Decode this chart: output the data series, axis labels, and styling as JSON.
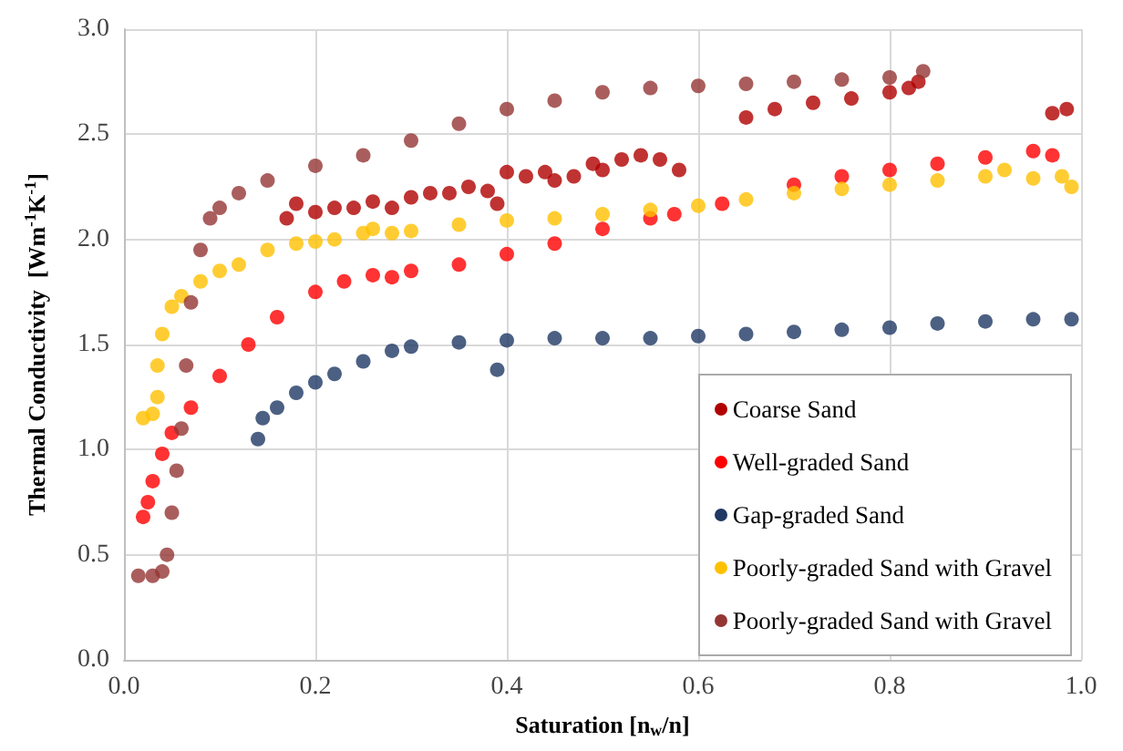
{
  "chart_data": {
    "type": "scatter",
    "xlabel": "Saturation [n$_{w}$/n]",
    "ylabel": "Thermal Conductivity  [Wm$^{-1}$K$^{-1}$]",
    "xlim": [
      0,
      1
    ],
    "xticks": [
      {
        "value": 0,
        "label": "0.0"
      },
      0.2,
      0.4,
      0.6,
      0.8,
      {
        "value": 1,
        "label": "1.0"
      }
    ],
    "ylim": [
      0,
      3
    ],
    "yticks": [
      {
        "value": 0,
        "label": "0.0"
      },
      0.5,
      {
        "value": 1,
        "label": "1.0"
      },
      1.5,
      {
        "value": 2,
        "label": "2.0"
      },
      2.5,
      {
        "value": 3,
        "label": "3.0"
      }
    ],
    "grid": true,
    "legend": "bottom right",
    "marker": "circle",
    "series": [
      {
        "name": "Coarse Sand",
        "color": "#b00000",
        "x": [
          0.17,
          0.18,
          0.2,
          0.22,
          0.24,
          0.26,
          0.28,
          0.3,
          0.32,
          0.34,
          0.36,
          0.38,
          0.39,
          0.4,
          0.42,
          0.44,
          0.45,
          0.47,
          0.49,
          0.5,
          0.52,
          0.54,
          0.56,
          0.58,
          0.65,
          0.68,
          0.72,
          0.76,
          0.8,
          0.82,
          0.83,
          0.97,
          0.985
        ],
        "values": [
          2.1,
          2.17,
          2.13,
          2.15,
          2.15,
          2.18,
          2.15,
          2.2,
          2.22,
          2.22,
          2.25,
          2.23,
          2.17,
          2.32,
          2.3,
          2.32,
          2.28,
          2.3,
          2.36,
          2.33,
          2.38,
          2.4,
          2.38,
          2.33,
          2.58,
          2.62,
          2.65,
          2.67,
          2.7,
          2.72,
          2.75,
          2.6,
          2.62
        ]
      },
      {
        "name": "Well-graded Sand",
        "color": "#ff0000",
        "x": [
          0.02,
          0.025,
          0.03,
          0.04,
          0.05,
          0.07,
          0.1,
          0.13,
          0.16,
          0.2,
          0.23,
          0.26,
          0.28,
          0.3,
          0.35,
          0.4,
          0.45,
          0.5,
          0.55,
          0.575,
          0.625,
          0.7,
          0.75,
          0.8,
          0.85,
          0.9,
          0.95,
          0.97
        ],
        "values": [
          0.68,
          0.75,
          0.85,
          0.98,
          1.08,
          1.2,
          1.35,
          1.5,
          1.63,
          1.75,
          1.8,
          1.83,
          1.82,
          1.85,
          1.88,
          1.93,
          1.98,
          2.05,
          2.1,
          2.12,
          2.17,
          2.26,
          2.3,
          2.33,
          2.36,
          2.39,
          2.42,
          2.4
        ]
      },
      {
        "name": "Gap-graded Sand",
        "color": "#1f3864",
        "x": [
          0.14,
          0.145,
          0.16,
          0.18,
          0.2,
          0.22,
          0.25,
          0.28,
          0.3,
          0.35,
          0.39,
          0.4,
          0.45,
          0.5,
          0.55,
          0.6,
          0.65,
          0.7,
          0.75,
          0.8,
          0.85,
          0.9,
          0.95,
          0.99
        ],
        "values": [
          1.05,
          1.15,
          1.2,
          1.27,
          1.32,
          1.36,
          1.42,
          1.47,
          1.49,
          1.51,
          1.38,
          1.52,
          1.53,
          1.53,
          1.53,
          1.54,
          1.55,
          1.56,
          1.57,
          1.58,
          1.6,
          1.61,
          1.62,
          1.62
        ]
      },
      {
        "name": "Poorly-graded Sand with Gravel",
        "color": "#ffc000",
        "x": [
          0.02,
          0.03,
          0.035,
          0.035,
          0.04,
          0.05,
          0.06,
          0.08,
          0.1,
          0.12,
          0.15,
          0.18,
          0.2,
          0.22,
          0.25,
          0.26,
          0.28,
          0.3,
          0.35,
          0.4,
          0.45,
          0.5,
          0.55,
          0.6,
          0.65,
          0.7,
          0.75,
          0.8,
          0.85,
          0.9,
          0.92,
          0.95,
          0.98,
          0.99
        ],
        "values": [
          1.15,
          1.17,
          1.25,
          1.4,
          1.55,
          1.68,
          1.73,
          1.8,
          1.85,
          1.88,
          1.95,
          1.98,
          1.99,
          2.0,
          2.03,
          2.05,
          2.03,
          2.04,
          2.07,
          2.09,
          2.1,
          2.12,
          2.14,
          2.16,
          2.19,
          2.22,
          2.24,
          2.26,
          2.28,
          2.3,
          2.33,
          2.29,
          2.3,
          2.25
        ]
      },
      {
        "name": "Poorly-graded Sand with Gravel",
        "color": "#943634",
        "x": [
          0.015,
          0.03,
          0.04,
          0.045,
          0.05,
          0.055,
          0.06,
          0.065,
          0.07,
          0.08,
          0.09,
          0.1,
          0.12,
          0.15,
          0.2,
          0.25,
          0.3,
          0.35,
          0.4,
          0.45,
          0.5,
          0.55,
          0.6,
          0.65,
          0.7,
          0.75,
          0.8,
          0.835
        ],
        "values": [
          0.4,
          0.4,
          0.42,
          0.5,
          0.7,
          0.9,
          1.1,
          1.4,
          1.7,
          1.95,
          2.1,
          2.15,
          2.22,
          2.28,
          2.35,
          2.4,
          2.47,
          2.55,
          2.62,
          2.66,
          2.7,
          2.72,
          2.73,
          2.74,
          2.75,
          2.76,
          2.77,
          2.8
        ]
      }
    ]
  }
}
